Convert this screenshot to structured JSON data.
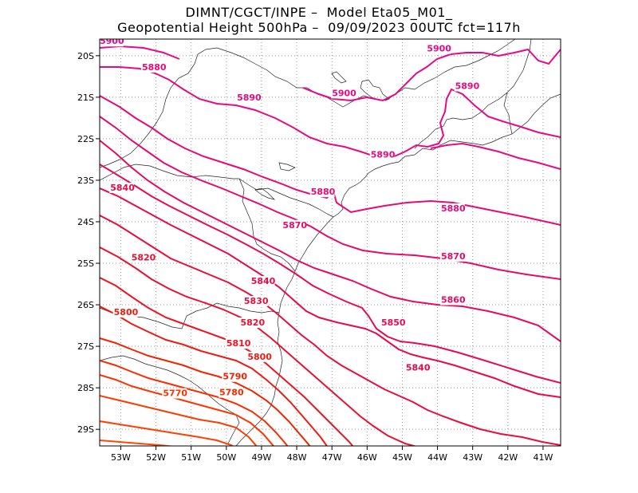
{
  "header": {
    "line1": "DIMNT/CGCT/INPE –  Model Eta05_M01_",
    "line2": "Geopotential Height 500hPa –  09/09/2023 00UTC fct=117h"
  },
  "map": {
    "lon_range": [
      -53.6,
      -40.5
    ],
    "lat_range": [
      -29.4,
      -19.6
    ],
    "lon_ticks": [
      {
        "value": -53,
        "label": "53W"
      },
      {
        "value": -52,
        "label": "52W"
      },
      {
        "value": -51,
        "label": "51W"
      },
      {
        "value": -50,
        "label": "50W"
      },
      {
        "value": -49,
        "label": "49W"
      },
      {
        "value": -48,
        "label": "48W"
      },
      {
        "value": -47,
        "label": "47W"
      },
      {
        "value": -46,
        "label": "46W"
      },
      {
        "value": -45,
        "label": "45W"
      },
      {
        "value": -44,
        "label": "44W"
      },
      {
        "value": -43,
        "label": "43W"
      },
      {
        "value": -42,
        "label": "42W"
      },
      {
        "value": -41,
        "label": "41W"
      }
    ],
    "lat_ticks": [
      {
        "value": -20,
        "label": "20S"
      },
      {
        "value": -21,
        "label": "21S"
      },
      {
        "value": -22,
        "label": "22S"
      },
      {
        "value": -23,
        "label": "23S"
      },
      {
        "value": -24,
        "label": "24S"
      },
      {
        "value": -25,
        "label": "25S"
      },
      {
        "value": -26,
        "label": "26S"
      },
      {
        "value": -27,
        "label": "27S"
      },
      {
        "value": -28,
        "label": "28S"
      },
      {
        "value": -29,
        "label": "29S"
      }
    ],
    "grid": "dotted",
    "contour_colors": {
      "5770": "#ff3300",
      "5780": "#ff2a00",
      "5790": "#f52200",
      "5800": "#f01a14",
      "5810": "#ee1420",
      "5820": "#ec1030",
      "5830": "#ea0c3c",
      "5840": "#e80a48",
      "5850": "#e80a55",
      "5860": "#e80a60",
      "5870": "#e80a6a",
      "5880": "#e80a74",
      "5890": "#e80a80",
      "5900": "#e8088a"
    },
    "contour_labels": [
      {
        "text": "5900",
        "lon": -53.6,
        "lat": -19.72,
        "color": "#e8088a"
      },
      {
        "text": "5880",
        "lon": -52.4,
        "lat": -20.35,
        "color": "#e80a74"
      },
      {
        "text": "5890",
        "lon": -49.7,
        "lat": -21.08,
        "color": "#e80a80"
      },
      {
        "text": "5900",
        "lon": -47.0,
        "lat": -20.97,
        "color": "#e8088a"
      },
      {
        "text": "5900",
        "lon": -44.3,
        "lat": -19.9,
        "color": "#e8088a"
      },
      {
        "text": "5890",
        "lon": -43.5,
        "lat": -20.8,
        "color": "#e80a80"
      },
      {
        "text": "5890",
        "lon": -45.9,
        "lat": -22.45,
        "color": "#e80a80"
      },
      {
        "text": "5840",
        "lon": -53.3,
        "lat": -23.25,
        "color": "#e80a48"
      },
      {
        "text": "5880",
        "lon": -47.6,
        "lat": -23.35,
        "color": "#e80a74"
      },
      {
        "text": "5880",
        "lon": -43.9,
        "lat": -23.75,
        "color": "#e80a74"
      },
      {
        "text": "5870",
        "lon": -48.4,
        "lat": -24.15,
        "color": "#e80a6a"
      },
      {
        "text": "5870",
        "lon": -43.9,
        "lat": -24.9,
        "color": "#e80a6a"
      },
      {
        "text": "5820",
        "lon": -52.7,
        "lat": -24.93,
        "color": "#ec1030"
      },
      {
        "text": "5840",
        "lon": -49.3,
        "lat": -25.5,
        "color": "#e80a48"
      },
      {
        "text": "5860",
        "lon": -43.9,
        "lat": -25.95,
        "color": "#e80a60"
      },
      {
        "text": "5830",
        "lon": -49.5,
        "lat": -25.98,
        "color": "#ea0c3c"
      },
      {
        "text": "5800",
        "lon": -53.2,
        "lat": -26.25,
        "color": "#f01a14"
      },
      {
        "text": "5850",
        "lon": -45.6,
        "lat": -26.5,
        "color": "#e80a55"
      },
      {
        "text": "5820",
        "lon": -49.6,
        "lat": -26.5,
        "color": "#ec1030"
      },
      {
        "text": "5810",
        "lon": -50.0,
        "lat": -27.0,
        "color": "#ee1420"
      },
      {
        "text": "5800",
        "lon": -49.4,
        "lat": -27.32,
        "color": "#f01a14"
      },
      {
        "text": "5840",
        "lon": -44.9,
        "lat": -27.58,
        "color": "#e80a48"
      },
      {
        "text": "5790",
        "lon": -50.1,
        "lat": -27.8,
        "color": "#f52200"
      },
      {
        "text": "5770",
        "lon": -51.8,
        "lat": -28.2,
        "color": "#ff3300"
      },
      {
        "text": "5780",
        "lon": -50.2,
        "lat": -28.18,
        "color": "#ff2a00"
      }
    ]
  }
}
